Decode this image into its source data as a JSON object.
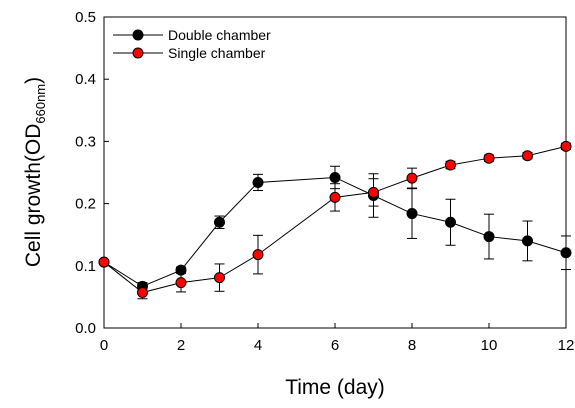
{
  "chart_data": {
    "type": "line",
    "xlabel": "Time (day)",
    "ylabel": {
      "main": "Cell growth(OD",
      "sub": "660nm",
      "close": ")"
    },
    "xlim": [
      0,
      12
    ],
    "ylim": [
      0,
      0.5
    ],
    "xticks": [
      "0",
      "2",
      "4",
      "6",
      "8",
      "10",
      "12"
    ],
    "yticks": [
      "0.0",
      "0.1",
      "0.2",
      "0.3",
      "0.4",
      "0.5"
    ],
    "grid": false,
    "legend_position": "top-left",
    "series": [
      {
        "name": "Double chamber",
        "color": "#000000",
        "x": [
          0,
          1,
          2,
          3,
          4,
          6,
          7,
          8,
          9,
          10,
          11,
          12
        ],
        "y": [
          0.106,
          0.067,
          0.093,
          0.17,
          0.234,
          0.242,
          0.213,
          0.184,
          0.17,
          0.147,
          0.14,
          0.121
        ],
        "err": [
          0.004,
          0.006,
          0.005,
          0.01,
          0.013,
          0.018,
          0.035,
          0.04,
          0.037,
          0.036,
          0.032,
          0.027
        ]
      },
      {
        "name": "Single chamber",
        "color": "#ff0000",
        "x": [
          0,
          1,
          2,
          3,
          4,
          6,
          7,
          8,
          9,
          10,
          11,
          12
        ],
        "y": [
          0.106,
          0.057,
          0.073,
          0.081,
          0.118,
          0.21,
          0.218,
          0.241,
          0.262,
          0.273,
          0.277,
          0.292
        ],
        "err": [
          0.004,
          0.01,
          0.015,
          0.022,
          0.031,
          0.022,
          0.022,
          0.016,
          0.006,
          0.005,
          0.005,
          0.005
        ]
      }
    ]
  }
}
